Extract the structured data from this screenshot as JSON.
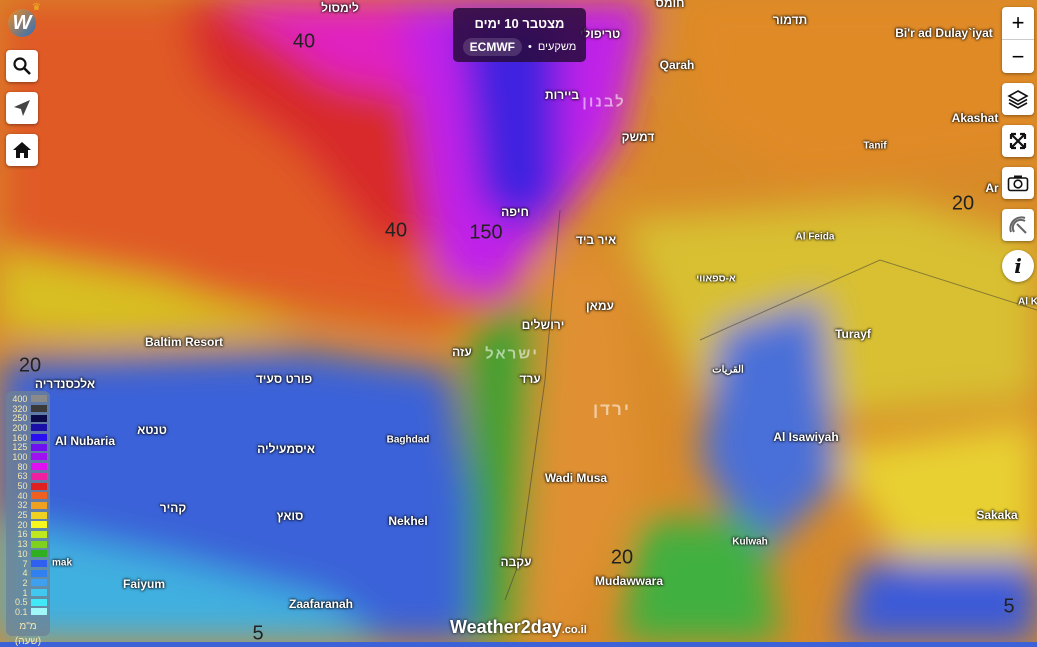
{
  "title": {
    "main": "מצטבר 10 ימים",
    "type": "משקעים",
    "model": "ECMWF"
  },
  "controls": {
    "zoom_in": "+",
    "zoom_out": "−",
    "icons": [
      "search-icon",
      "location-arrow-icon",
      "home-icon",
      "layers-icon",
      "fullscreen-icon",
      "camera-icon",
      "satellite-icon",
      "info-icon"
    ]
  },
  "brand": {
    "name": "Weather2day",
    "tld": ".co.il"
  },
  "legend": {
    "unit": "מ\"מ",
    "period": "(שעה)",
    "levels": [
      {
        "v": "400",
        "c": "#8a8a8a"
      },
      {
        "v": "320",
        "c": "#3a3a3a"
      },
      {
        "v": "250",
        "c": "#0a0a4a"
      },
      {
        "v": "200",
        "c": "#1a10a8"
      },
      {
        "v": "160",
        "c": "#2a10f0"
      },
      {
        "v": "125",
        "c": "#7010f0"
      },
      {
        "v": "100",
        "c": "#a010f0"
      },
      {
        "v": "80",
        "c": "#e010f0"
      },
      {
        "v": "63",
        "c": "#f020a0"
      },
      {
        "v": "50",
        "c": "#e02020"
      },
      {
        "v": "40",
        "c": "#f06020"
      },
      {
        "v": "32",
        "c": "#f0a020"
      },
      {
        "v": "25",
        "c": "#f0d020"
      },
      {
        "v": "20",
        "c": "#f8f820"
      },
      {
        "v": "16",
        "c": "#c0e820"
      },
      {
        "v": "13",
        "c": "#80d020"
      },
      {
        "v": "10",
        "c": "#30b020"
      },
      {
        "v": "7",
        "c": "#3060f0"
      },
      {
        "v": "4",
        "c": "#3080f0"
      },
      {
        "v": "2",
        "c": "#40a0f0"
      },
      {
        "v": "1",
        "c": "#40c8f0"
      },
      {
        "v": "0.5",
        "c": "#40e8f8"
      },
      {
        "v": "0.1",
        "c": "#a0f8f8"
      }
    ]
  },
  "map": {
    "labels": [
      "לימסול",
      "חומס",
      "טריפולי",
      "תדמור",
      "Bi'r ad Dulay`iyat",
      "Qarah",
      "ביירות",
      "דמשק",
      "Akashat",
      "Tanif",
      "Ar",
      "חיפה",
      "איר ביד",
      "Al Feida",
      "א-ספאווי",
      "עמאן",
      "ירושלים",
      "Al K",
      "Turayf",
      "Baltim Resort",
      "עזה",
      "القريات",
      "אלכסנדריה",
      "פורט סעיד",
      "ערד",
      "Al Nubaria",
      "טנטא",
      "Baghdad",
      "איסמעיליה",
      "Al Isawiyah",
      "Wadi Musa",
      "קהיר",
      "סואץ",
      "Nekhel",
      "Sakaka",
      "Kulwah",
      "עקבה",
      "mak",
      "Mudawwara",
      "Faiyum",
      "Zaafaranah"
    ],
    "countries": [
      "לבנון",
      "ישראל",
      "ירדן"
    ],
    "contours": [
      "40",
      "40",
      "150",
      "20",
      "20",
      "20",
      "5",
      "5"
    ]
  }
}
